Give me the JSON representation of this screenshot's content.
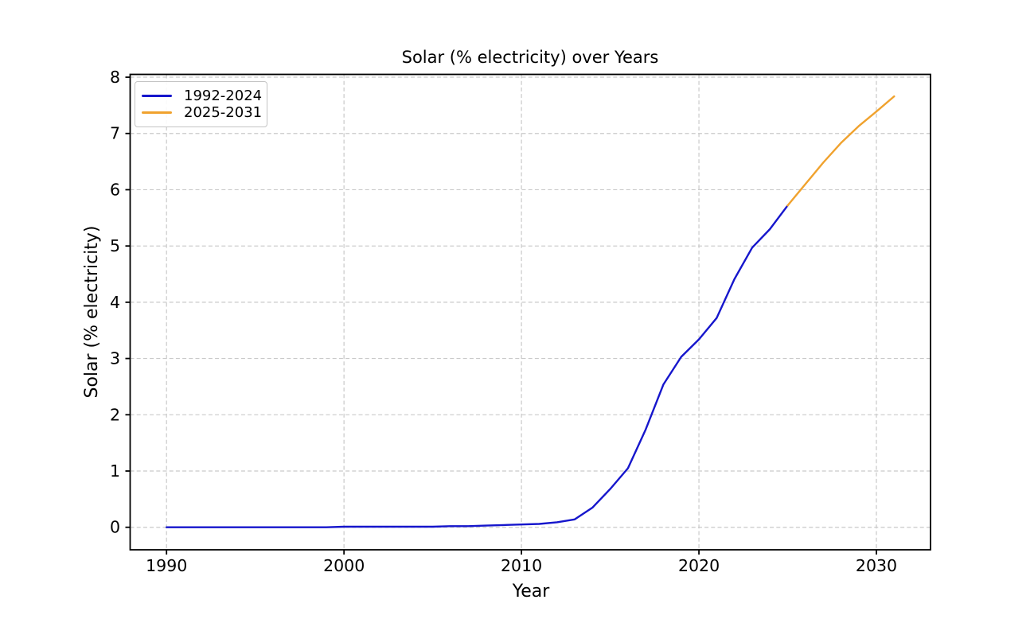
{
  "figure": {
    "background": "#ffffff",
    "grid_color": "#c9c9c9",
    "spine_color": "#000000"
  },
  "chart_data": {
    "type": "line",
    "title": "Solar (% electricity) over Years",
    "xlabel": "Year",
    "ylabel": "Solar (% electricity)",
    "xlim": [
      1987.95,
      2033.05
    ],
    "ylim": [
      -0.4,
      8.05
    ],
    "x_ticks": [
      1990,
      2000,
      2010,
      2020,
      2030
    ],
    "y_ticks": [
      0,
      1,
      2,
      3,
      4,
      5,
      6,
      7,
      8
    ],
    "grid": true,
    "grid_style": "dashed",
    "legend_position": "upper left",
    "series": [
      {
        "name": "1992-2024",
        "color": "#1616cc",
        "x": [
          1990,
          1991,
          1992,
          1993,
          1994,
          1995,
          1996,
          1997,
          1998,
          1999,
          2000,
          2001,
          2002,
          2003,
          2004,
          2005,
          2006,
          2007,
          2008,
          2009,
          2010,
          2011,
          2012,
          2013,
          2014,
          2015,
          2016,
          2017,
          2018,
          2019,
          2020,
          2021,
          2022,
          2023,
          2024,
          2025
        ],
        "values": [
          0.0,
          0.0,
          0.0,
          0.0,
          0.0,
          0.0,
          0.0,
          0.0,
          0.0,
          0.0,
          0.01,
          0.01,
          0.01,
          0.01,
          0.01,
          0.01,
          0.02,
          0.02,
          0.03,
          0.04,
          0.05,
          0.06,
          0.09,
          0.14,
          0.35,
          0.68,
          1.05,
          1.74,
          2.54,
          3.03,
          3.34,
          3.72,
          4.41,
          4.97,
          5.3,
          5.72
        ]
      },
      {
        "name": "2025-2031",
        "color": "#f0a22e",
        "x": [
          2025,
          2026,
          2027,
          2028,
          2029,
          2030,
          2031
        ],
        "values": [
          5.72,
          6.1,
          6.48,
          6.83,
          7.13,
          7.39,
          7.66
        ]
      }
    ]
  }
}
